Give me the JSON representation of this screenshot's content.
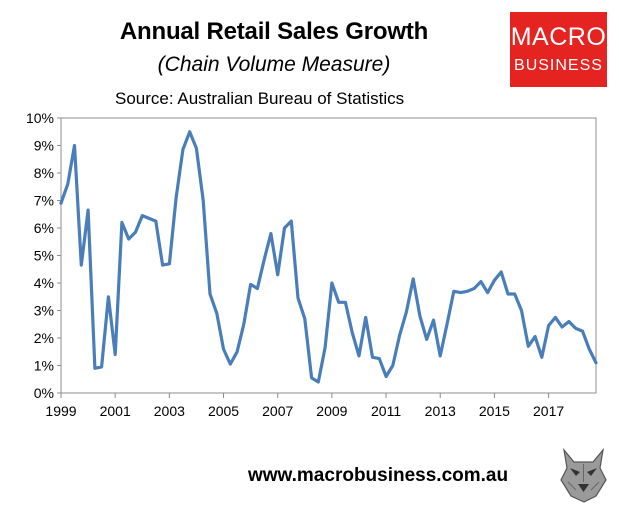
{
  "header": {
    "title": "Annual Retail Sales Growth",
    "subtitle": "(Chain Volume Measure)",
    "source": "Source: Australian Bureau of Statistics"
  },
  "logo": {
    "line1": "MACRO",
    "line2": "BUSINESS",
    "color": "#e52421"
  },
  "footer": {
    "website": "www.macrobusiness.com.au",
    "mascot_icon": "wolf-icon"
  },
  "chart_data": {
    "type": "line",
    "title": "Annual Retail Sales Growth",
    "subtitle": "(Chain Volume Measure)",
    "xlim": [
      1999,
      2018.75
    ],
    "ylim": [
      0,
      10
    ],
    "x_ticks": [
      "1999",
      "2001",
      "2003",
      "2005",
      "2007",
      "2009",
      "2011",
      "2013",
      "2015",
      "2017"
    ],
    "y_ticks": [
      "0%",
      "1%",
      "2%",
      "3%",
      "4%",
      "5%",
      "6%",
      "7%",
      "8%",
      "9%",
      "10%"
    ],
    "grid": false,
    "line_color": "#4a7ebb",
    "series": [
      {
        "x": [
          1999.0,
          1999.25,
          1999.5,
          1999.75,
          2000.0,
          2000.25,
          2000.5,
          2000.75,
          2001.0,
          2001.25,
          2001.5,
          2001.75,
          2002.0,
          2002.25,
          2002.5,
          2002.75,
          2003.0,
          2003.25,
          2003.5,
          2003.75,
          2004.0,
          2004.25,
          2004.5,
          2004.75,
          2005.0,
          2005.25,
          2005.5,
          2005.75,
          2006.0,
          2006.25,
          2006.5,
          2006.75,
          2007.0,
          2007.25,
          2007.5,
          2007.75,
          2008.0,
          2008.25,
          2008.5,
          2008.75,
          2009.0,
          2009.25,
          2009.5,
          2009.75,
          2010.0,
          2010.25,
          2010.5,
          2010.75,
          2011.0,
          2011.25,
          2011.5,
          2011.75,
          2012.0,
          2012.25,
          2012.5,
          2012.75,
          2013.0,
          2013.25,
          2013.5,
          2013.75,
          2014.0,
          2014.25,
          2014.5,
          2014.75,
          2015.0,
          2015.25,
          2015.5,
          2015.75,
          2016.0,
          2016.25,
          2016.5,
          2016.75,
          2017.0,
          2017.25,
          2017.5,
          2017.75,
          2018.0,
          2018.25,
          2018.5,
          2018.75
        ],
        "values": [
          6.9,
          7.6,
          9.0,
          4.65,
          6.65,
          0.9,
          0.95,
          3.5,
          1.4,
          6.2,
          5.6,
          5.85,
          6.45,
          6.35,
          6.25,
          4.65,
          4.7,
          7.1,
          8.85,
          9.5,
          8.9,
          7.0,
          3.6,
          2.9,
          1.6,
          1.05,
          1.5,
          2.5,
          3.95,
          3.8,
          4.85,
          5.8,
          4.3,
          6.0,
          6.25,
          3.45,
          2.7,
          0.55,
          0.4,
          1.65,
          4.0,
          3.3,
          3.3,
          2.2,
          1.35,
          2.75,
          1.3,
          1.25,
          0.6,
          1.0,
          2.1,
          2.95,
          4.15,
          2.8,
          1.95,
          2.65,
          1.35,
          2.5,
          3.7,
          3.65,
          3.7,
          3.8,
          4.05,
          3.65,
          4.1,
          4.4,
          3.6,
          3.6,
          3.0,
          1.7,
          2.05,
          1.3,
          2.45,
          2.75,
          2.4,
          2.6,
          2.35,
          2.25,
          1.6,
          1.1
        ]
      }
    ]
  }
}
